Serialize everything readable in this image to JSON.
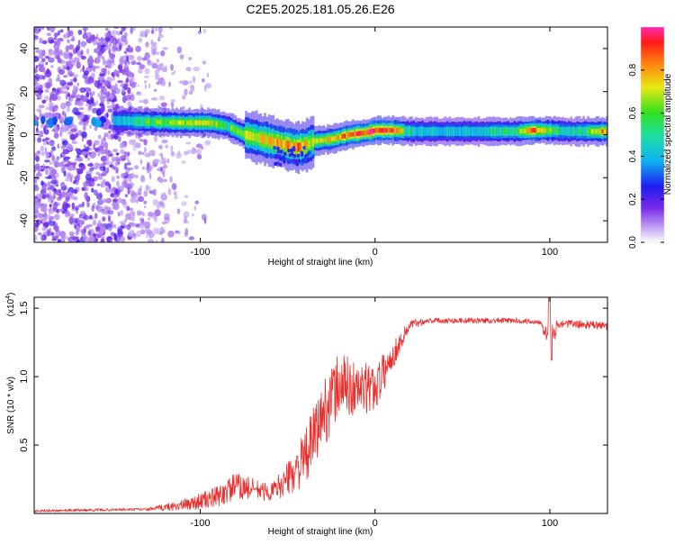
{
  "title": "C2E5.2025.181.05.26.E26",
  "chart_data": [
    {
      "type": "heatmap",
      "xlabel": "Height of straight line (km)",
      "ylabel": "Frequency (Hz)",
      "xlim": [
        -195,
        133
      ],
      "ylim": [
        -50,
        50
      ],
      "xticks": [
        -100,
        0,
        100
      ],
      "yticks": [
        -40,
        -20,
        0,
        20,
        40
      ],
      "colorbar": {
        "label": "Normalized spectral amplitude",
        "range": [
          0,
          1
        ],
        "ticks": [
          "0.0",
          "0.2",
          "0.4",
          "0.6",
          "0.8"
        ]
      },
      "ridge_km": [
        -145,
        -130,
        -110,
        -95,
        -85,
        -75,
        -65,
        -55,
        -45,
        -40,
        -35,
        -25,
        -15,
        -5,
        0,
        10,
        20,
        40,
        60,
        80,
        90,
        100,
        110,
        120,
        133
      ],
      "ridge_hz": [
        6.5,
        6,
        5.5,
        5.5,
        4,
        0,
        -2,
        -4,
        -6,
        -5,
        -3,
        -2,
        0,
        1,
        2,
        2,
        1.5,
        1.5,
        1.5,
        1.5,
        2,
        2,
        1.5,
        1.5,
        1.5
      ],
      "ridge_amp": [
        0.45,
        0.6,
        0.7,
        0.75,
        0.6,
        0.65,
        0.75,
        0.8,
        0.9,
        0.75,
        0.7,
        0.8,
        0.9,
        0.95,
        0.95,
        0.9,
        0.5,
        0.45,
        0.5,
        0.6,
        0.95,
        0.6,
        0.5,
        0.6,
        0.9
      ]
    },
    {
      "type": "line",
      "xlabel": "Height of straight line (km)",
      "ylabel": "SNR (10 * v/v)",
      "ylabel_exponent": "(x10",
      "ylabel_exponent_power": "4",
      "xlim": [
        -195,
        133
      ],
      "ylim": [
        0,
        1.58
      ],
      "xticks": [
        -100,
        0,
        100
      ],
      "yticks": [
        0.5,
        1.0,
        1.5
      ],
      "ytick_labels": [
        "0.5",
        "1.0",
        "1.5"
      ],
      "line_color": "#e8312f",
      "envelope_x": [
        -195,
        -130,
        -110,
        -90,
        -80,
        -70,
        -60,
        -50,
        -40,
        -30,
        -20,
        -10,
        0,
        10,
        20,
        30,
        40,
        60,
        80,
        95,
        100,
        105,
        120,
        133
      ],
      "envelope_y": [
        0.02,
        0.03,
        0.06,
        0.12,
        0.2,
        0.18,
        0.15,
        0.25,
        0.4,
        0.72,
        0.95,
        0.9,
        0.92,
        1.15,
        1.38,
        1.41,
        1.41,
        1.41,
        1.41,
        1.4,
        1.25,
        1.39,
        1.38,
        1.37
      ],
      "noise_amp": [
        0.01,
        0.01,
        0.04,
        0.08,
        0.1,
        0.08,
        0.06,
        0.12,
        0.2,
        0.25,
        0.25,
        0.2,
        0.18,
        0.1,
        0.04,
        0.02,
        0.02,
        0.02,
        0.02,
        0.02,
        0.12,
        0.03,
        0.03,
        0.03
      ]
    }
  ]
}
